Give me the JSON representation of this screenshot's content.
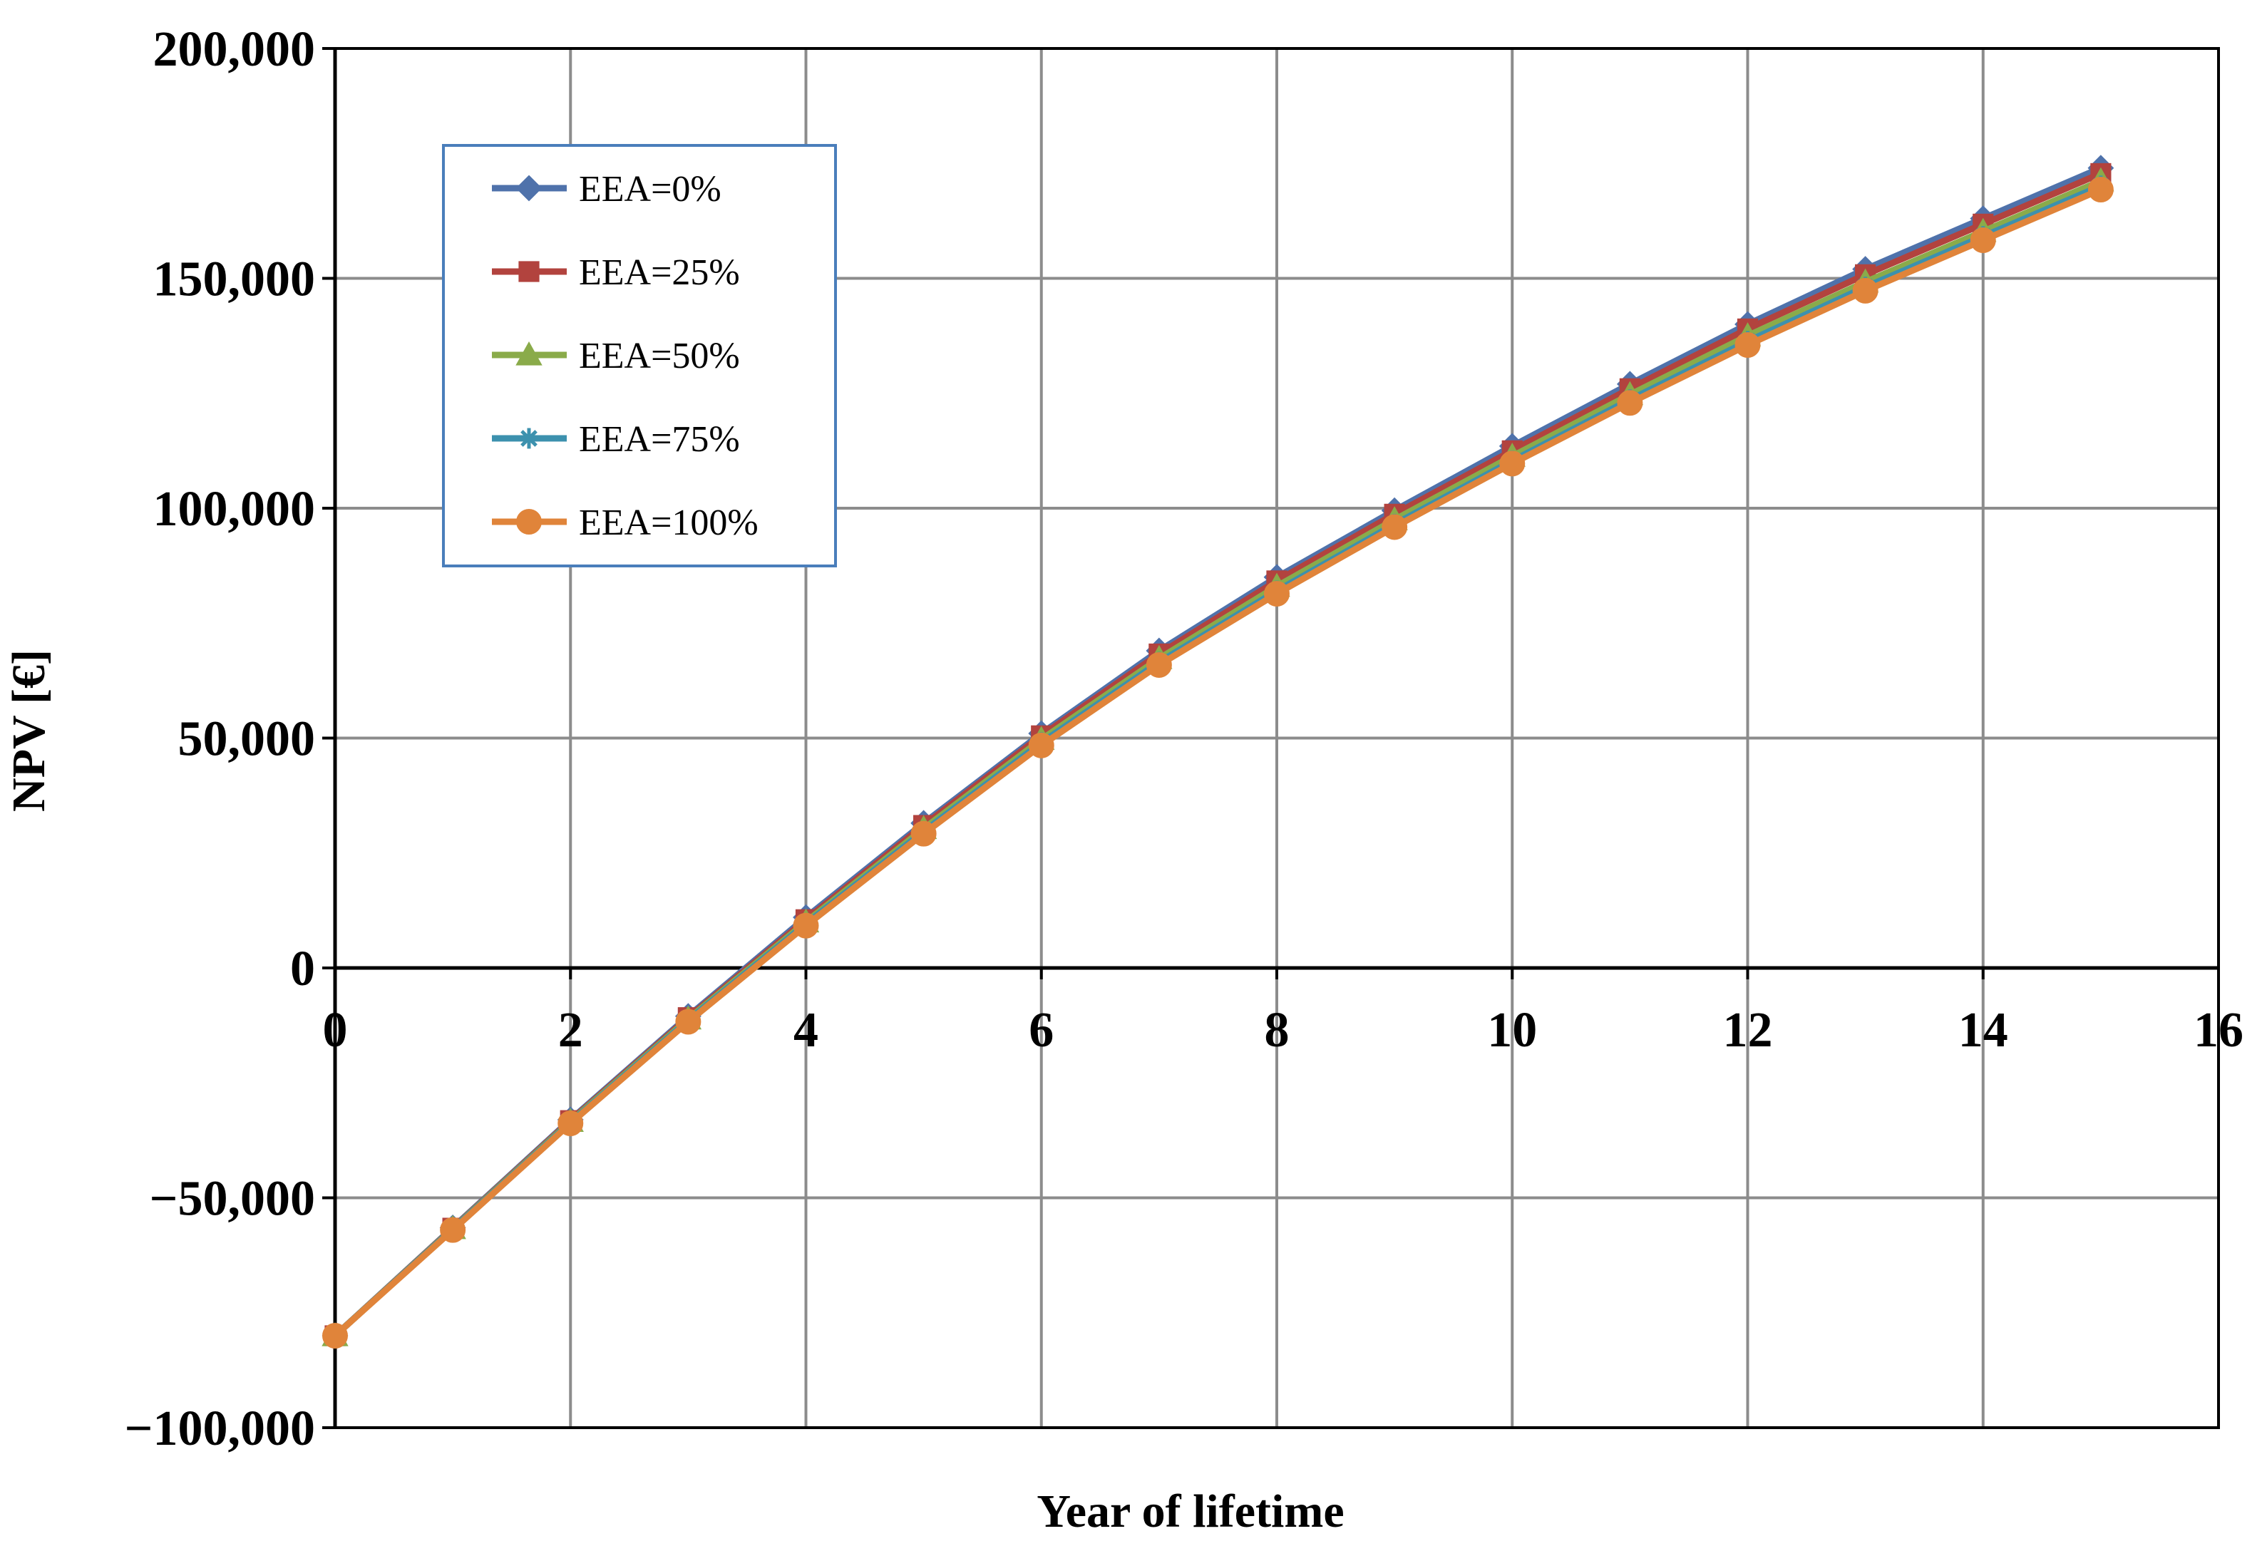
{
  "chart_data": {
    "type": "line",
    "title": "",
    "xlabel": "Year of lifetime",
    "ylabel": "NPV [€]",
    "xlim": [
      0,
      16
    ],
    "ylim": [
      -100000,
      200000
    ],
    "x_ticks": [
      0,
      2,
      4,
      6,
      8,
      10,
      12,
      14,
      16
    ],
    "y_ticks": [
      -100000,
      -50000,
      0,
      50000,
      100000,
      150000,
      200000
    ],
    "x_tick_labels": [
      "0",
      "2",
      "4",
      "6",
      "8",
      "10",
      "12",
      "14",
      "16"
    ],
    "y_tick_labels": [
      "−100,000",
      "−50,000",
      "0",
      "50,000",
      "100,000",
      "150,000",
      "200,000"
    ],
    "grid": true,
    "legend_position": "top-left",
    "x": [
      0,
      1,
      2,
      3,
      4,
      5,
      6,
      7,
      8,
      9,
      10,
      11,
      12,
      13,
      14,
      15
    ],
    "series": [
      {
        "name": "EEA=0%",
        "color": "#4F72AB",
        "marker": "diamond",
        "values": [
          -80000,
          -56500,
          -33000,
          -10500,
          11000,
          31500,
          51000,
          69000,
          85000,
          99500,
          113500,
          127000,
          140000,
          152000,
          163000,
          174000
        ]
      },
      {
        "name": "EEA=25%",
        "color": "#B2433E",
        "marker": "square",
        "values": [
          -80000,
          -56600,
          -33200,
          -10800,
          10500,
          31000,
          50500,
          68300,
          84200,
          98700,
          112500,
          126000,
          139000,
          150800,
          161800,
          172800
        ]
      },
      {
        "name": "EEA=50%",
        "color": "#8AAB4A",
        "marker": "triangle",
        "values": [
          -80000,
          -56700,
          -33400,
          -11100,
          10000,
          30300,
          49700,
          67300,
          83000,
          97500,
          111300,
          124700,
          137500,
          149200,
          160200,
          171200
        ]
      },
      {
        "name": "EEA=75%",
        "color": "#3C91AE",
        "marker": "star",
        "values": [
          -80000,
          -56800,
          -33600,
          -11400,
          9600,
          29700,
          49000,
          66500,
          82000,
          96500,
          110300,
          123600,
          136300,
          148100,
          159100,
          170100
        ]
      },
      {
        "name": "EEA=100%",
        "color": "#E0843A",
        "marker": "circle",
        "values": [
          -80000,
          -57000,
          -33800,
          -11700,
          9200,
          29200,
          48400,
          65900,
          81400,
          95900,
          109700,
          122900,
          135500,
          147300,
          158300,
          169300
        ]
      }
    ]
  }
}
